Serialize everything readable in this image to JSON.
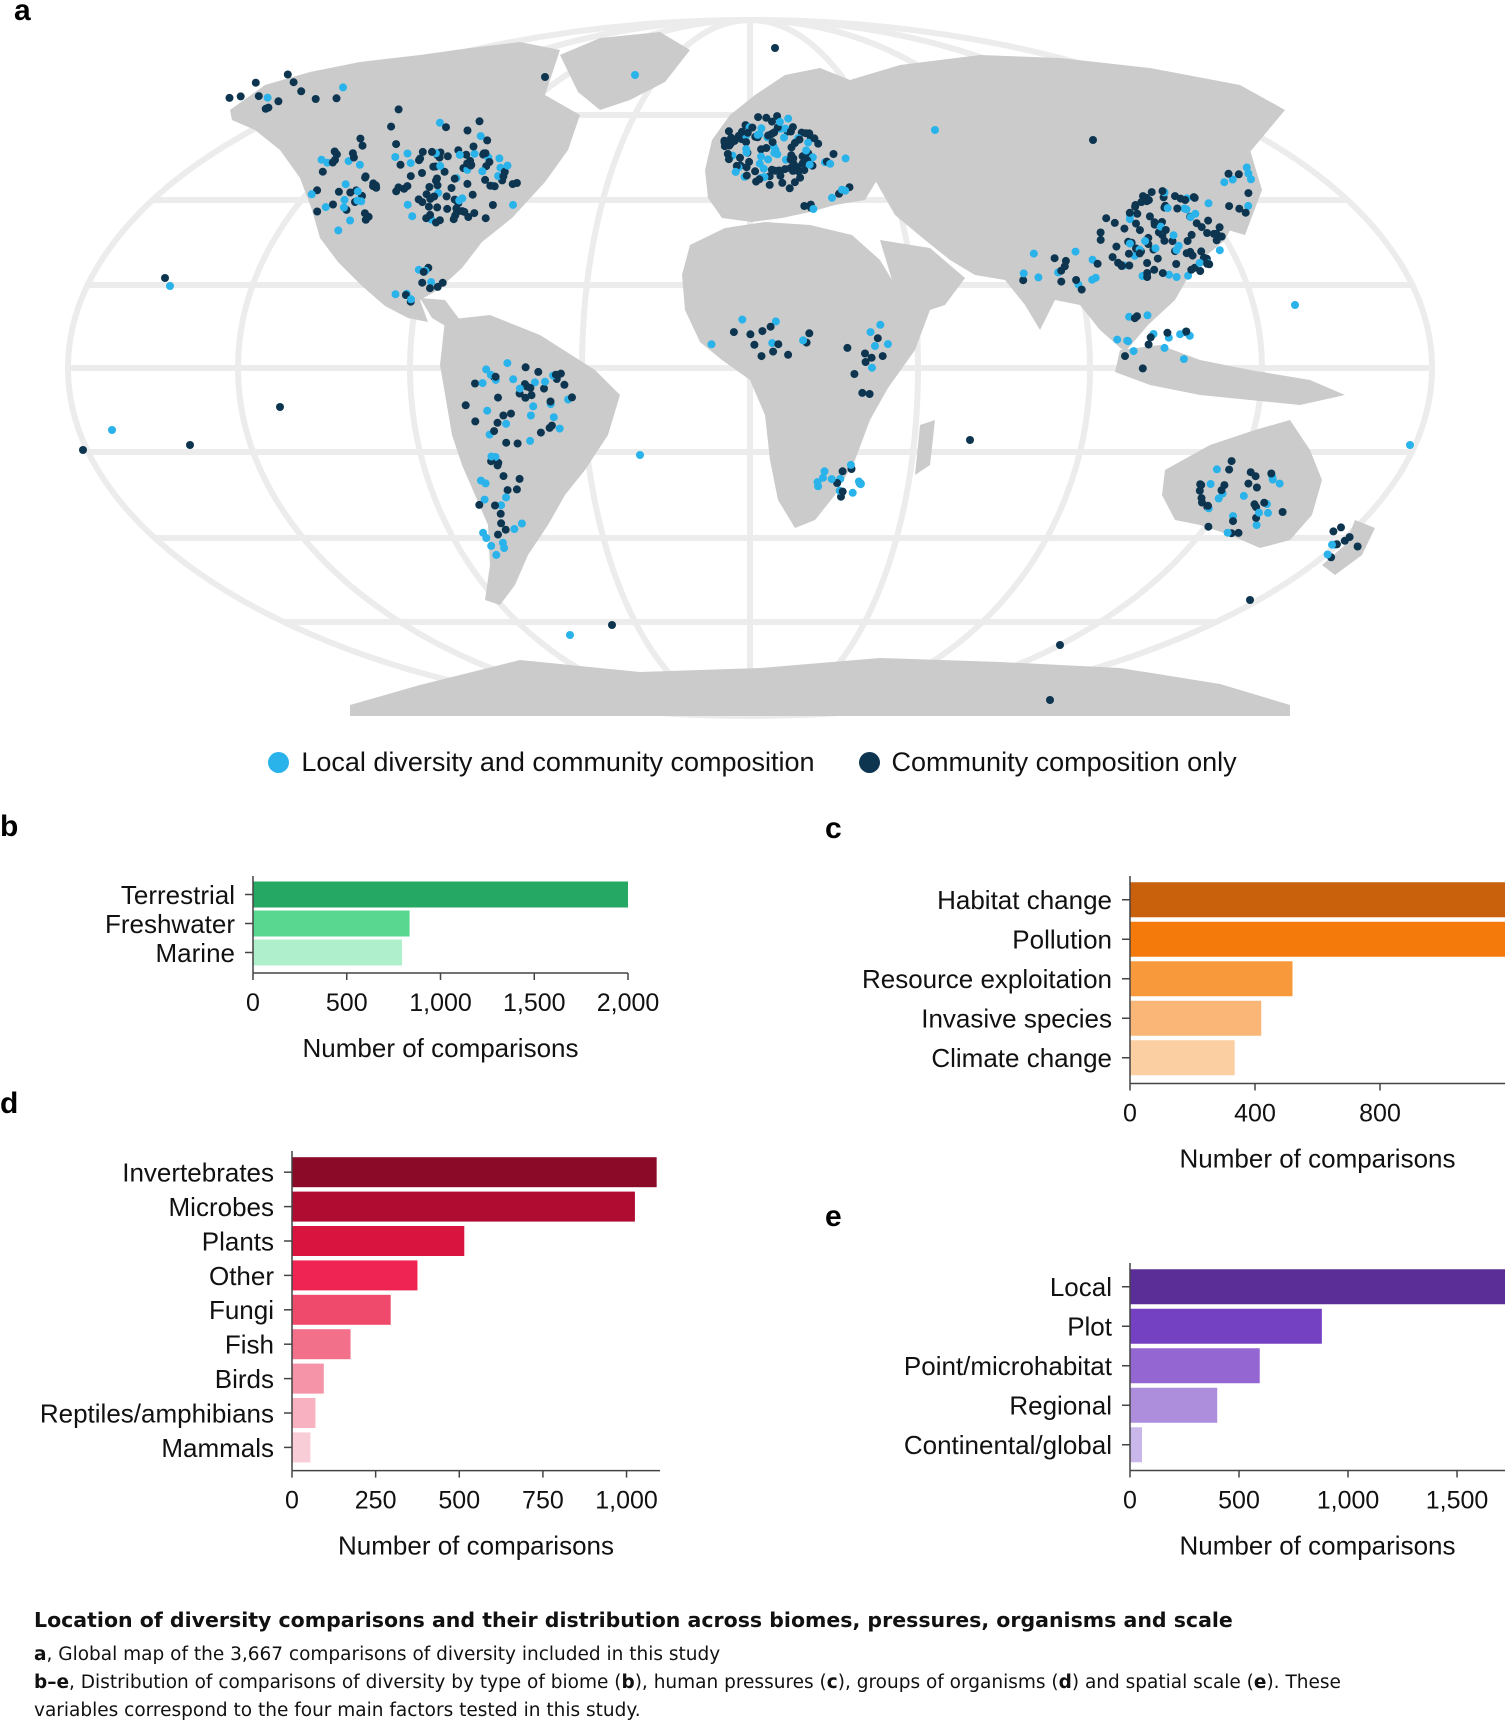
{
  "panel_letters": {
    "a": "a",
    "b": "b",
    "c": "c",
    "d": "d",
    "e": "e"
  },
  "colors": {
    "land": "#cbcbcb",
    "graticule": "#ececec",
    "local_dot": "#29b3ea",
    "composition_dot": "#0d3550"
  },
  "map": {
    "legend": {
      "local": "Local diversity and community composition",
      "composition": "Community composition only"
    }
  },
  "chart_data": [
    {
      "panel": "b",
      "type": "bar",
      "orientation": "horizontal",
      "title": "",
      "xlabel": "Number of comparisons",
      "ylabel": "",
      "xlim": [
        0,
        2000
      ],
      "xticks": [
        0,
        500,
        1000,
        1500,
        2000
      ],
      "xtick_labels": [
        "0",
        "500",
        "1,000",
        "1,500",
        "2,000"
      ],
      "categories": [
        "Terrestrial",
        "Freshwater",
        "Marine"
      ],
      "values": [
        2030,
        835,
        795
      ],
      "colors": [
        "#24a864",
        "#59d690",
        "#b0efcb"
      ]
    },
    {
      "panel": "c",
      "type": "bar",
      "orientation": "horizontal",
      "title": "",
      "xlabel": "Number of comparisons",
      "ylabel": "",
      "xlim": [
        0,
        1200
      ],
      "xticks": [
        0,
        400,
        800
      ],
      "xtick_labels": [
        "0",
        "400",
        "800"
      ],
      "categories": [
        "Habitat change",
        "Pollution",
        "Resource exploitation",
        "Invasive species",
        "Climate change"
      ],
      "values": [
        1200,
        1200,
        520,
        420,
        335
      ],
      "colors": [
        "#c8600c",
        "#f57a0c",
        "#f89a3b",
        "#f9b677",
        "#fbcfa2"
      ]
    },
    {
      "panel": "d",
      "type": "bar",
      "orientation": "horizontal",
      "title": "",
      "xlabel": "Number of comparisons",
      "ylabel": "",
      "xlim": [
        0,
        1100
      ],
      "xticks": [
        0,
        250,
        500,
        750,
        1000
      ],
      "xtick_labels": [
        "0",
        "250",
        "500",
        "750",
        "1,000"
      ],
      "categories": [
        "Invertebrates",
        "Microbes",
        "Plants",
        "Other",
        "Fungi",
        "Fish",
        "Birds",
        "Reptiles/amphibians",
        "Mammals"
      ],
      "values": [
        1090,
        1025,
        515,
        375,
        295,
        175,
        95,
        70,
        55
      ],
      "colors": [
        "#8a0a27",
        "#b00c31",
        "#d9143f",
        "#ef2452",
        "#ef4a6c",
        "#f2708a",
        "#f593a8",
        "#f7b1c1",
        "#f9cdd7"
      ]
    },
    {
      "panel": "e",
      "type": "bar",
      "orientation": "horizontal",
      "title": "",
      "xlabel": "Number of comparisons",
      "ylabel": "",
      "xlim": [
        0,
        1720
      ],
      "xticks": [
        0,
        500,
        1000,
        1500
      ],
      "xtick_labels": [
        "0",
        "500",
        "1,000",
        "1,500"
      ],
      "categories": [
        "Local",
        "Plot",
        "Point/microhabitat",
        "Regional",
        "Continental/global"
      ],
      "values": [
        1720,
        880,
        595,
        400,
        55
      ],
      "colors": [
        "#5a2e96",
        "#7441c3",
        "#9366d1",
        "#ad8edd",
        "#cab7ea"
      ]
    }
  ],
  "caption": {
    "title": "Location of diversity comparisons and their distribution across biomes, pressures, organisms and scale",
    "line_a_letter": "a",
    "line_a_text": ", Global map of the 3,667 comparisons of diversity included in this study",
    "line_be_letter": "b–e",
    "line_be_t1": ", Distribution of comparisons of diversity by type of biome (",
    "line_be_b": "b",
    "line_be_t2": "), human pressures (",
    "line_be_c": "c",
    "line_be_t3": "), groups of organisms (",
    "line_be_d": "d",
    "line_be_t4": ") and spatial scale (",
    "line_be_e": "e",
    "line_be_t5": "). These",
    "line_be_cont": "variables correspond to the four main factors tested in this study."
  }
}
